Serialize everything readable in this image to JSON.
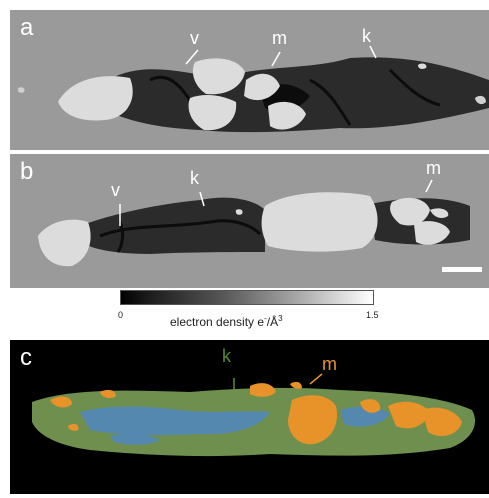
{
  "panels": {
    "a": {
      "label": "a",
      "annotations": [
        "v",
        "m",
        "k"
      ]
    },
    "b": {
      "label": "b",
      "annotations": [
        "v",
        "k",
        "m"
      ]
    },
    "c": {
      "label": "c",
      "annotations": [
        "k",
        "m"
      ]
    }
  },
  "colorbar": {
    "min_label": "0",
    "max_label": "1.5",
    "title": "electron density e",
    "title_sup": "-",
    "title_unit": "/Å",
    "title_unit_sup": "3"
  },
  "colors": {
    "background_gray": "#9a9a9a",
    "void_black": "#141414",
    "mineral_white": "#dcdcdc",
    "panel_c_background": "#000000",
    "kerogen_green": "#6f8f4f",
    "pore_blue": "#4f86c6",
    "mineral_orange": "#e8922a"
  }
}
